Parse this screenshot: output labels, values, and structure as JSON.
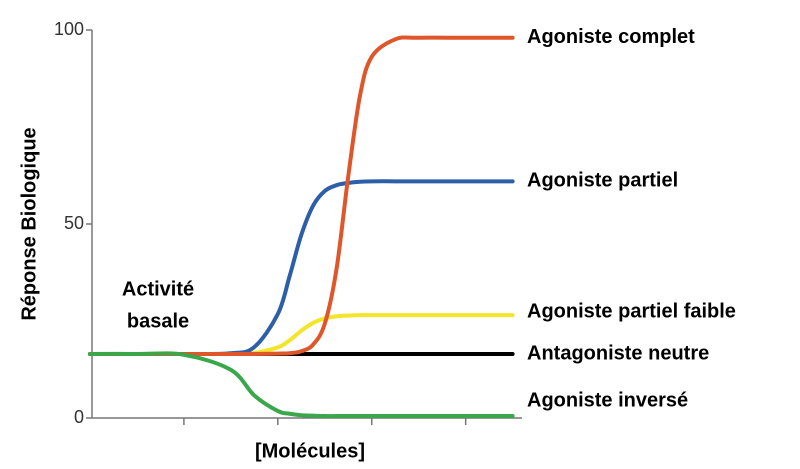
{
  "chart_data": {
    "type": "line",
    "x_label": "[Molécules]",
    "y_label": "Réponse Biologique",
    "annotation": [
      "Activité",
      "basale"
    ],
    "x": [
      0,
      1,
      2,
      3,
      3.5,
      4,
      4.25,
      4.5,
      4.75,
      5,
      5.25,
      5.5,
      5.75,
      6,
      6.5,
      7,
      8,
      9
    ],
    "xlim": [
      0,
      9.2
    ],
    "xticks": [
      2,
      4,
      6,
      8
    ],
    "ylim": [
      0,
      100
    ],
    "yticks": [
      0,
      50,
      100
    ],
    "series": [
      {
        "name": "Antagoniste neutre",
        "color": "#000000",
        "values": [
          16.5,
          16.5,
          16.5,
          16.5,
          16.5,
          16.5,
          16.5,
          16.5,
          16.5,
          16.5,
          16.5,
          16.5,
          16.5,
          16.5,
          16.5,
          16.5,
          16.5,
          16.5
        ]
      },
      {
        "name": "Agoniste partiel faible",
        "color": "#f2e52a",
        "values": [
          16.5,
          16.5,
          16.5,
          16.5,
          16.8,
          18.2,
          20.0,
          22.5,
          24.5,
          25.7,
          26.2,
          26.4,
          26.5,
          26.5,
          26.5,
          26.5,
          26.5,
          26.5
        ]
      },
      {
        "name": "Agoniste partiel",
        "color": "#2d5fa8",
        "values": [
          16.5,
          16.5,
          16.5,
          16.7,
          18.3,
          26.8,
          36.5,
          47.2,
          54.7,
          58.5,
          60.0,
          60.6,
          60.9,
          61,
          61,
          61,
          61,
          61
        ]
      },
      {
        "name": "Agoniste complet",
        "color": "#e0562b",
        "values": [
          16.5,
          16.5,
          16.5,
          16.5,
          16.5,
          16.6,
          16.7,
          17.2,
          18.9,
          24.3,
          38.4,
          62.3,
          83.1,
          93.1,
          97.6,
          98,
          98,
          98
        ]
      },
      {
        "name": "Agoniste inversé",
        "color": "#3aa84a",
        "values": [
          16.5,
          16.5,
          16.3,
          12.4,
          5.8,
          1.8,
          1.1,
          0.7,
          0.6,
          0.5,
          0.5,
          0.5,
          0.5,
          0.5,
          0.5,
          0.5,
          0.5,
          0.5
        ]
      }
    ]
  }
}
